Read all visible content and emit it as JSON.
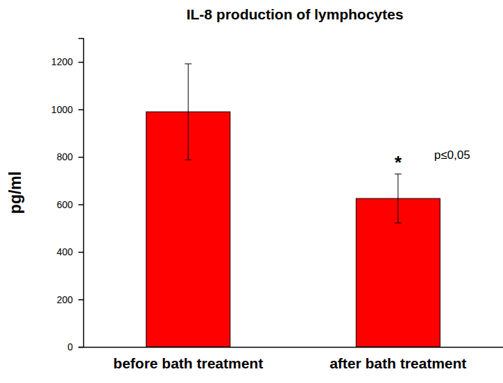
{
  "chart_data": {
    "type": "bar",
    "title": "IL-8 production of lymphocytes",
    "y_label": "pg/ml",
    "categories": [
      "before bath treatment",
      "after bath treatment"
    ],
    "values": [
      990,
      625
    ],
    "errors": [
      202,
      103
    ],
    "color": "#ff0000",
    "ylim": [
      0,
      1300
    ],
    "yticks": [
      0,
      200,
      400,
      600,
      800,
      1000,
      1200
    ],
    "grid": false,
    "annotations": [
      "*",
      "p≤0,05"
    ]
  }
}
